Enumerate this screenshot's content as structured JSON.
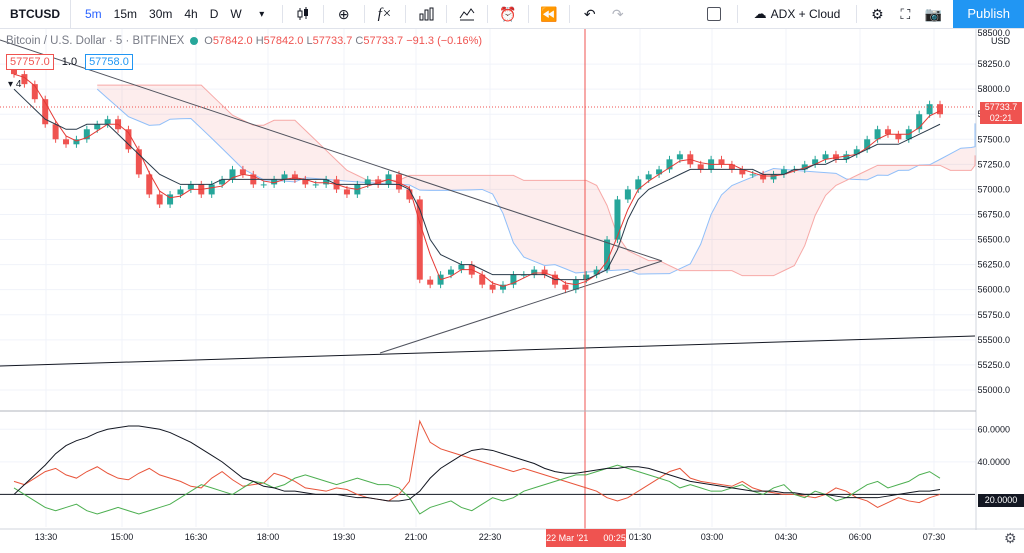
{
  "toolbar": {
    "symbol": "BTCUSD",
    "intervals": [
      "5m",
      "15m",
      "30m",
      "4h",
      "D",
      "W"
    ],
    "active_interval": "5m",
    "cloud_label": "ADX + Cloud",
    "publish": "Publish",
    "fx_label": "f×"
  },
  "legend": {
    "title": "Bitcoin / U.S. Dollar · 5 · BITFINEX",
    "open": "57842.0",
    "high": "57842.0",
    "low": "57733.7",
    "close": "57733.7",
    "change": "−91.3 (−0.16%)",
    "bid": "57757.0",
    "mid": "1.0",
    "ask": "57758.0",
    "indicator_count": "4"
  },
  "price_axis": {
    "currency": "USD",
    "top_label": "58500.0",
    "ticks": [
      "58250.0",
      "58000.0",
      "57750.0",
      "57500.0",
      "57250.0",
      "57000.0",
      "56750.0",
      "56500.0",
      "56250.0",
      "56000.0",
      "55750.0",
      "55500.0",
      "55250.0",
      "55000.0"
    ],
    "last_price": "57733.7",
    "countdown": "02:21"
  },
  "indicator_axis": {
    "ticks": [
      "60.0000",
      "40.0000"
    ],
    "level_label": "20.0000"
  },
  "time_axis": {
    "ticks": [
      "13:30",
      "15:00",
      "16:30",
      "18:00",
      "19:30",
      "21:00",
      "22:30",
      "01:30",
      "03:00",
      "04:30",
      "06:00",
      "07:30"
    ],
    "crosshair_date": "22 Mar '21",
    "crosshair_time": "00:25"
  },
  "colors": {
    "up": "#26a69a",
    "down": "#ef5350",
    "accent": "#2962ff",
    "publish": "#2196f3",
    "crosshair": "#ef5350"
  },
  "chart_data": {
    "type": "candlestick",
    "symbol": "BTCUSD",
    "interval": "5",
    "exchange": "BITFINEX",
    "price_ylim": [
      54800,
      58600
    ],
    "indicator_ylim": [
      0,
      70
    ],
    "close": [
      58150,
      58050,
      57900,
      57650,
      57500,
      57450,
      57500,
      57600,
      57650,
      57700,
      57600,
      57400,
      57150,
      56950,
      56850,
      56950,
      57000,
      57050,
      56950,
      57050,
      57100,
      57200,
      57150,
      57050,
      57050,
      57100,
      57150,
      57100,
      57050,
      57050,
      57100,
      57000,
      56950,
      57050,
      57100,
      57050,
      57150,
      57000,
      56900,
      56100,
      56050,
      56150,
      56200,
      56250,
      56150,
      56050,
      56000,
      56050,
      56150,
      56150,
      56200,
      56150,
      56050,
      56000,
      56100,
      56150,
      56200,
      56500,
      56900,
      57000,
      57100,
      57150,
      57200,
      57300,
      57350,
      57250,
      57200,
      57300,
      57250,
      57200,
      57150,
      57150,
      57100,
      57150,
      57200,
      57200,
      57250,
      57300,
      57350,
      57300,
      57350,
      57400,
      57500,
      57600,
      57550,
      57500,
      57600,
      57750,
      57850,
      57750
    ],
    "kijun": [
      58000,
      57900,
      57800,
      57700,
      57650,
      57600,
      57600,
      57650,
      57650,
      57650,
      57550,
      57450,
      57350,
      57250,
      57150,
      57100,
      57050,
      57050,
      57050,
      57050,
      57100,
      57100,
      57100,
      57100,
      57100,
      57100,
      57100,
      57100,
      57100,
      57100,
      57100,
      57050,
      57050,
      57050,
      57050,
      57050,
      57050,
      57050,
      57000,
      56800,
      56500,
      56350,
      56300,
      56250,
      56250,
      56200,
      56150,
      56150,
      56150,
      56150,
      56150,
      56150,
      56100,
      56100,
      56100,
      56100,
      56150,
      56200,
      56400,
      56700,
      56900,
      57000,
      57050,
      57100,
      57150,
      57200,
      57200,
      57200,
      57200,
      57200,
      57200,
      57200,
      57150,
      57150,
      57150,
      57200,
      57200,
      57250,
      57250,
      57300,
      57300,
      57350,
      57400,
      57450,
      57450,
      57450,
      57500,
      57550,
      57600,
      57650
    ],
    "adx_black": [
      20,
      26,
      32,
      38,
      45,
      50,
      53,
      55,
      58,
      60,
      61,
      62,
      62,
      61,
      60,
      58,
      55,
      52,
      48,
      44,
      40,
      35,
      30,
      28,
      25,
      24,
      22,
      22,
      21,
      20,
      20,
      20,
      19,
      18,
      18,
      17,
      16,
      16,
      17,
      22,
      30,
      36,
      40,
      44,
      47,
      48,
      47,
      45,
      43,
      41,
      39,
      36,
      34,
      33,
      33,
      34,
      35,
      36,
      36,
      37,
      37,
      36,
      34,
      32,
      30,
      28,
      27,
      26,
      25,
      24,
      23,
      22,
      22,
      22,
      21,
      21,
      20,
      20,
      20,
      19,
      18,
      18,
      18,
      18,
      19,
      20,
      21,
      22,
      22,
      23
    ],
    "adx_red": [
      28,
      26,
      30,
      34,
      36,
      32,
      30,
      34,
      37,
      33,
      30,
      29,
      33,
      36,
      32,
      30,
      28,
      25,
      24,
      30,
      34,
      29,
      25,
      26,
      27,
      33,
      31,
      28,
      24,
      23,
      22,
      24,
      23,
      20,
      18,
      17,
      16,
      20,
      28,
      65,
      52,
      48,
      46,
      44,
      42,
      40,
      38,
      36,
      34,
      36,
      34,
      32,
      30,
      28,
      26,
      24,
      22,
      18,
      16,
      18,
      22,
      26,
      30,
      34,
      36,
      30,
      28,
      27,
      26,
      25,
      28,
      24,
      22,
      21,
      20,
      20,
      19,
      18,
      20,
      24,
      22,
      18,
      16,
      12,
      15,
      18,
      16,
      15,
      18,
      20
    ],
    "adx_green": [
      24,
      20,
      16,
      12,
      10,
      12,
      14,
      10,
      8,
      10,
      12,
      10,
      8,
      10,
      12,
      14,
      18,
      22,
      26,
      24,
      22,
      20,
      24,
      28,
      27,
      24,
      26,
      30,
      32,
      30,
      28,
      26,
      28,
      30,
      28,
      26,
      26,
      24,
      18,
      8,
      12,
      14,
      16,
      12,
      10,
      14,
      18,
      16,
      18,
      22,
      24,
      26,
      28,
      30,
      32,
      32,
      34,
      36,
      38,
      36,
      34,
      32,
      30,
      28,
      24,
      26,
      24,
      22,
      22,
      24,
      26,
      22,
      20,
      24,
      26,
      20,
      18,
      22,
      20,
      16,
      18,
      22,
      26,
      28,
      24,
      26,
      28,
      32,
      34,
      30
    ]
  }
}
